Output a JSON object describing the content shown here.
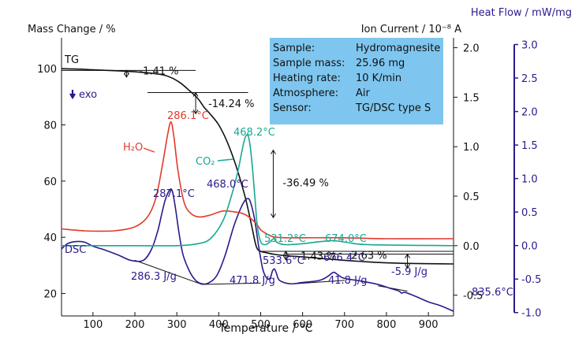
{
  "chart_data": {
    "type": "line",
    "x_axis": {
      "label": "Temperature / °C",
      "range": [
        25,
        960
      ],
      "ticks": [
        100,
        200,
        300,
        400,
        500,
        600,
        700,
        800,
        900
      ]
    },
    "y_axes": {
      "mass": {
        "label": "Mass Change / %",
        "range": [
          12,
          111
        ],
        "ticks": [
          20,
          40,
          60,
          80,
          100
        ]
      },
      "ion": {
        "label": "Ion Current / 10⁻⁸ A",
        "range": [
          -0.71,
          2.1
        ],
        "ticks": [
          -0.5,
          0.0,
          0.5,
          1.0,
          1.5,
          2.0
        ],
        "tick_labels": [
          "-0.5",
          "0.0",
          "0.5",
          "1.0",
          "1.5",
          "2.0"
        ]
      },
      "heat": {
        "label": "Heat Flow / mW/mg",
        "range": [
          -1.05,
          3.1
        ],
        "ticks": [
          -1.0,
          -0.5,
          0.0,
          0.5,
          1.0,
          1.5,
          2.0,
          2.5,
          3.0
        ],
        "tick_labels": [
          "-1.0",
          "-0.5",
          "0.0",
          "0.5",
          "1.0",
          "1.5",
          "2.0",
          "2.5",
          "3.0"
        ]
      }
    },
    "series": [
      {
        "name": "TG",
        "axis": "mass",
        "color": "#111111",
        "x": [
          25,
          60,
          100,
          150,
          200,
          240,
          270,
          290,
          310,
          330,
          350,
          365,
          380,
          400,
          420,
          440,
          460,
          470,
          480,
          490,
          500,
          510,
          530,
          550,
          600,
          650,
          700,
          750,
          800,
          850,
          900,
          960
        ],
        "y": [
          100.0,
          99.9,
          99.6,
          99.3,
          98.9,
          98.4,
          97.7,
          96.6,
          94.8,
          92.2,
          89.4,
          86.3,
          83.8,
          80.0,
          74.0,
          66.0,
          56.0,
          50.0,
          43.0,
          36.5,
          35.0,
          34.6,
          34.0,
          33.6,
          33.0,
          32.4,
          31.8,
          31.3,
          30.9,
          30.7,
          30.6,
          30.5
        ]
      },
      {
        "name": "DSC",
        "axis": "heat",
        "color": "#2b1a8c",
        "x": [
          25,
          40,
          60,
          80,
          100,
          130,
          160,
          190,
          220,
          240,
          255,
          265,
          275,
          287,
          295,
          305,
          315,
          330,
          345,
          360,
          375,
          395,
          415,
          435,
          450,
          460,
          468,
          475,
          485,
          495,
          505,
          515,
          523,
          528,
          533,
          538,
          545,
          570,
          600,
          640,
          660,
          670,
          676,
          685,
          700,
          740,
          780,
          810,
          830,
          836,
          845,
          870,
          900,
          930,
          960
        ],
        "y": [
          -0.05,
          0.03,
          0.06,
          0.05,
          -0.01,
          -0.07,
          -0.14,
          -0.22,
          -0.22,
          -0.05,
          0.23,
          0.5,
          0.73,
          0.84,
          0.63,
          0.2,
          -0.14,
          -0.38,
          -0.52,
          -0.57,
          -0.56,
          -0.45,
          -0.15,
          0.27,
          0.52,
          0.65,
          0.7,
          0.66,
          0.41,
          0.0,
          -0.35,
          -0.49,
          -0.48,
          -0.38,
          -0.35,
          -0.42,
          -0.52,
          -0.57,
          -0.55,
          -0.52,
          -0.46,
          -0.41,
          -0.4,
          -0.44,
          -0.49,
          -0.53,
          -0.58,
          -0.64,
          -0.68,
          -0.71,
          -0.7,
          -0.76,
          -0.84,
          -0.9,
          -0.98
        ]
      },
      {
        "name": "H₂O",
        "axis": "ion",
        "color": "#e23a2c",
        "x": [
          25,
          80,
          150,
          200,
          230,
          250,
          265,
          278,
          286,
          293,
          303,
          318,
          335,
          355,
          380,
          410,
          440,
          460,
          475,
          490,
          500,
          510,
          530,
          560,
          600,
          700,
          800,
          960
        ],
        "y": [
          0.17,
          0.15,
          0.15,
          0.19,
          0.29,
          0.48,
          0.8,
          1.12,
          1.25,
          1.1,
          0.75,
          0.43,
          0.32,
          0.29,
          0.31,
          0.35,
          0.34,
          0.32,
          0.28,
          0.22,
          0.16,
          0.13,
          0.09,
          0.08,
          0.08,
          0.08,
          0.07,
          0.07
        ]
      },
      {
        "name": "CO₂",
        "axis": "ion",
        "color": "#19a893",
        "x": [
          25,
          100,
          200,
          300,
          350,
          380,
          410,
          430,
          445,
          455,
          462,
          468,
          473,
          479,
          486,
          492,
          500,
          510,
          520,
          531,
          540,
          560,
          600,
          640,
          674,
          710,
          760,
          960
        ],
        "y": [
          0.0,
          0.0,
          0.0,
          0.0,
          0.02,
          0.07,
          0.25,
          0.5,
          0.74,
          0.95,
          1.08,
          1.12,
          1.06,
          0.85,
          0.5,
          0.2,
          0.04,
          0.01,
          0.03,
          0.07,
          0.03,
          0.01,
          0.02,
          0.04,
          0.05,
          0.03,
          0.01,
          0.0
        ]
      }
    ],
    "baselines": [
      {
        "axis": "heat",
        "x": [
          200,
          360,
          500
        ],
        "y": [
          -0.22,
          -0.58,
          -0.56
        ]
      },
      {
        "axis": "heat",
        "x": [
          580,
          700
        ],
        "y": [
          -0.57,
          -0.52
        ]
      },
      {
        "axis": "heat",
        "x": [
          780,
          850
        ],
        "y": [
          -0.6,
          -0.68
        ]
      }
    ],
    "steps": [
      {
        "label": "-1.41 %",
        "x": 180,
        "y_top": 99.4,
        "y_bottom": 97.0
      },
      {
        "label": "-14.24 %",
        "x": 345,
        "y_top": 91.5,
        "y_bottom": 84.0
      },
      {
        "label": "-36.49 %",
        "x": 530,
        "y_top": 71.0,
        "y_bottom": 47.0
      },
      {
        "label": "-1.43 %",
        "x": 560,
        "y_top": 35.0,
        "y_bottom": 32.0
      },
      {
        "label": "-2.63 %",
        "x": 850,
        "y_top": 34.0,
        "y_bottom": 29.0
      }
    ],
    "legend_box": {
      "rows": [
        {
          "key": "Sample:",
          "value": "Hydromagnesite"
        },
        {
          "key": "Sample mass:",
          "value": "25.96 mg"
        },
        {
          "key": "Heating rate:",
          "value": "10 K/min"
        },
        {
          "key": "Atmosphere:",
          "value": "Air"
        },
        {
          "key": "Sensor:",
          "value": "TG/DSC type S"
        }
      ],
      "background": "#7ec6ef"
    },
    "labels": {
      "tg": "TG",
      "exo": "exo",
      "dsc": "DSC",
      "h2o": "H₂O",
      "co2": "CO₂"
    },
    "annotations": [
      {
        "text": "286.1°C",
        "color": "#e23a2c"
      },
      {
        "text": "468.2°C",
        "color": "#19a893"
      },
      {
        "text": "531.2°C",
        "color": "#19a893"
      },
      {
        "text": "674.0°C",
        "color": "#19a893"
      },
      {
        "text": "287.1°C",
        "color": "#2b1a8c"
      },
      {
        "text": "468.0°C",
        "color": "#2b1a8c"
      },
      {
        "text": "533.6°C",
        "color": "#2b1a8c"
      },
      {
        "text": "676.4°C",
        "color": "#2b1a8c"
      },
      {
        "text": "835.6°C",
        "color": "#2b1a8c"
      },
      {
        "text": "286.3 J/g",
        "color": "#2b1a8c"
      },
      {
        "text": "471.8 J/g",
        "color": "#2b1a8c"
      },
      {
        "text": "41.8 J/g",
        "color": "#2b1a8c"
      },
      {
        "text": "-5.9 J/g",
        "color": "#2b1a8c"
      }
    ]
  }
}
